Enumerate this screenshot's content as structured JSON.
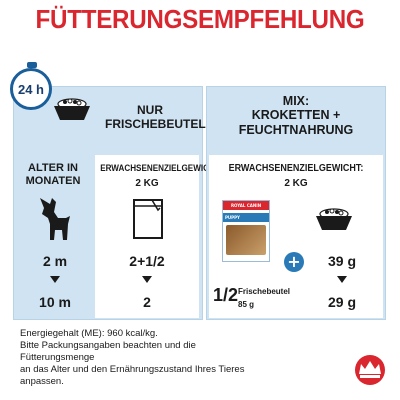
{
  "title": "FÜTTERUNGSEMPFEHLUNG",
  "clock_label": "24 h",
  "left": {
    "header": [
      "NUR",
      "FRISCHEBEUTEL"
    ],
    "age_label": [
      "ALTER IN",
      "MONATEN"
    ],
    "weight_label": "ERWACHSENENZIELGEWICHT:",
    "weight_value": "2 KG",
    "rows": [
      {
        "age": "2 m",
        "amount": "2+1/2"
      },
      {
        "age": "10 m",
        "amount": "2"
      }
    ]
  },
  "right": {
    "header": [
      "MIX:",
      "KROKETTEN +",
      "FEUCHTNAHRUNG"
    ],
    "weight_label": "ERWACHSENENZIELGEWICHT:",
    "weight_value": "2 KG",
    "pouch_fraction": "1/2",
    "pouch_label": "Frischebeutel",
    "pouch_weight": "85 g",
    "pouch_brand": "ROYAL CANIN",
    "pouch_product": "PUPPY",
    "rows": [
      "39 g",
      "29 g"
    ]
  },
  "plus_symbol": "+",
  "footer": [
    "Energiegehalt (ME): 960 kcal/kg.",
    "Bitte Packungsangaben beachten und die",
    "Fütterungsmenge",
    "an das Alter und den Ernährungszustand Ihres Tieres",
    "anpassen."
  ],
  "colors": {
    "title": "#d9262f",
    "panel": "#cfe3f2",
    "accent": "#1a5e9a"
  }
}
